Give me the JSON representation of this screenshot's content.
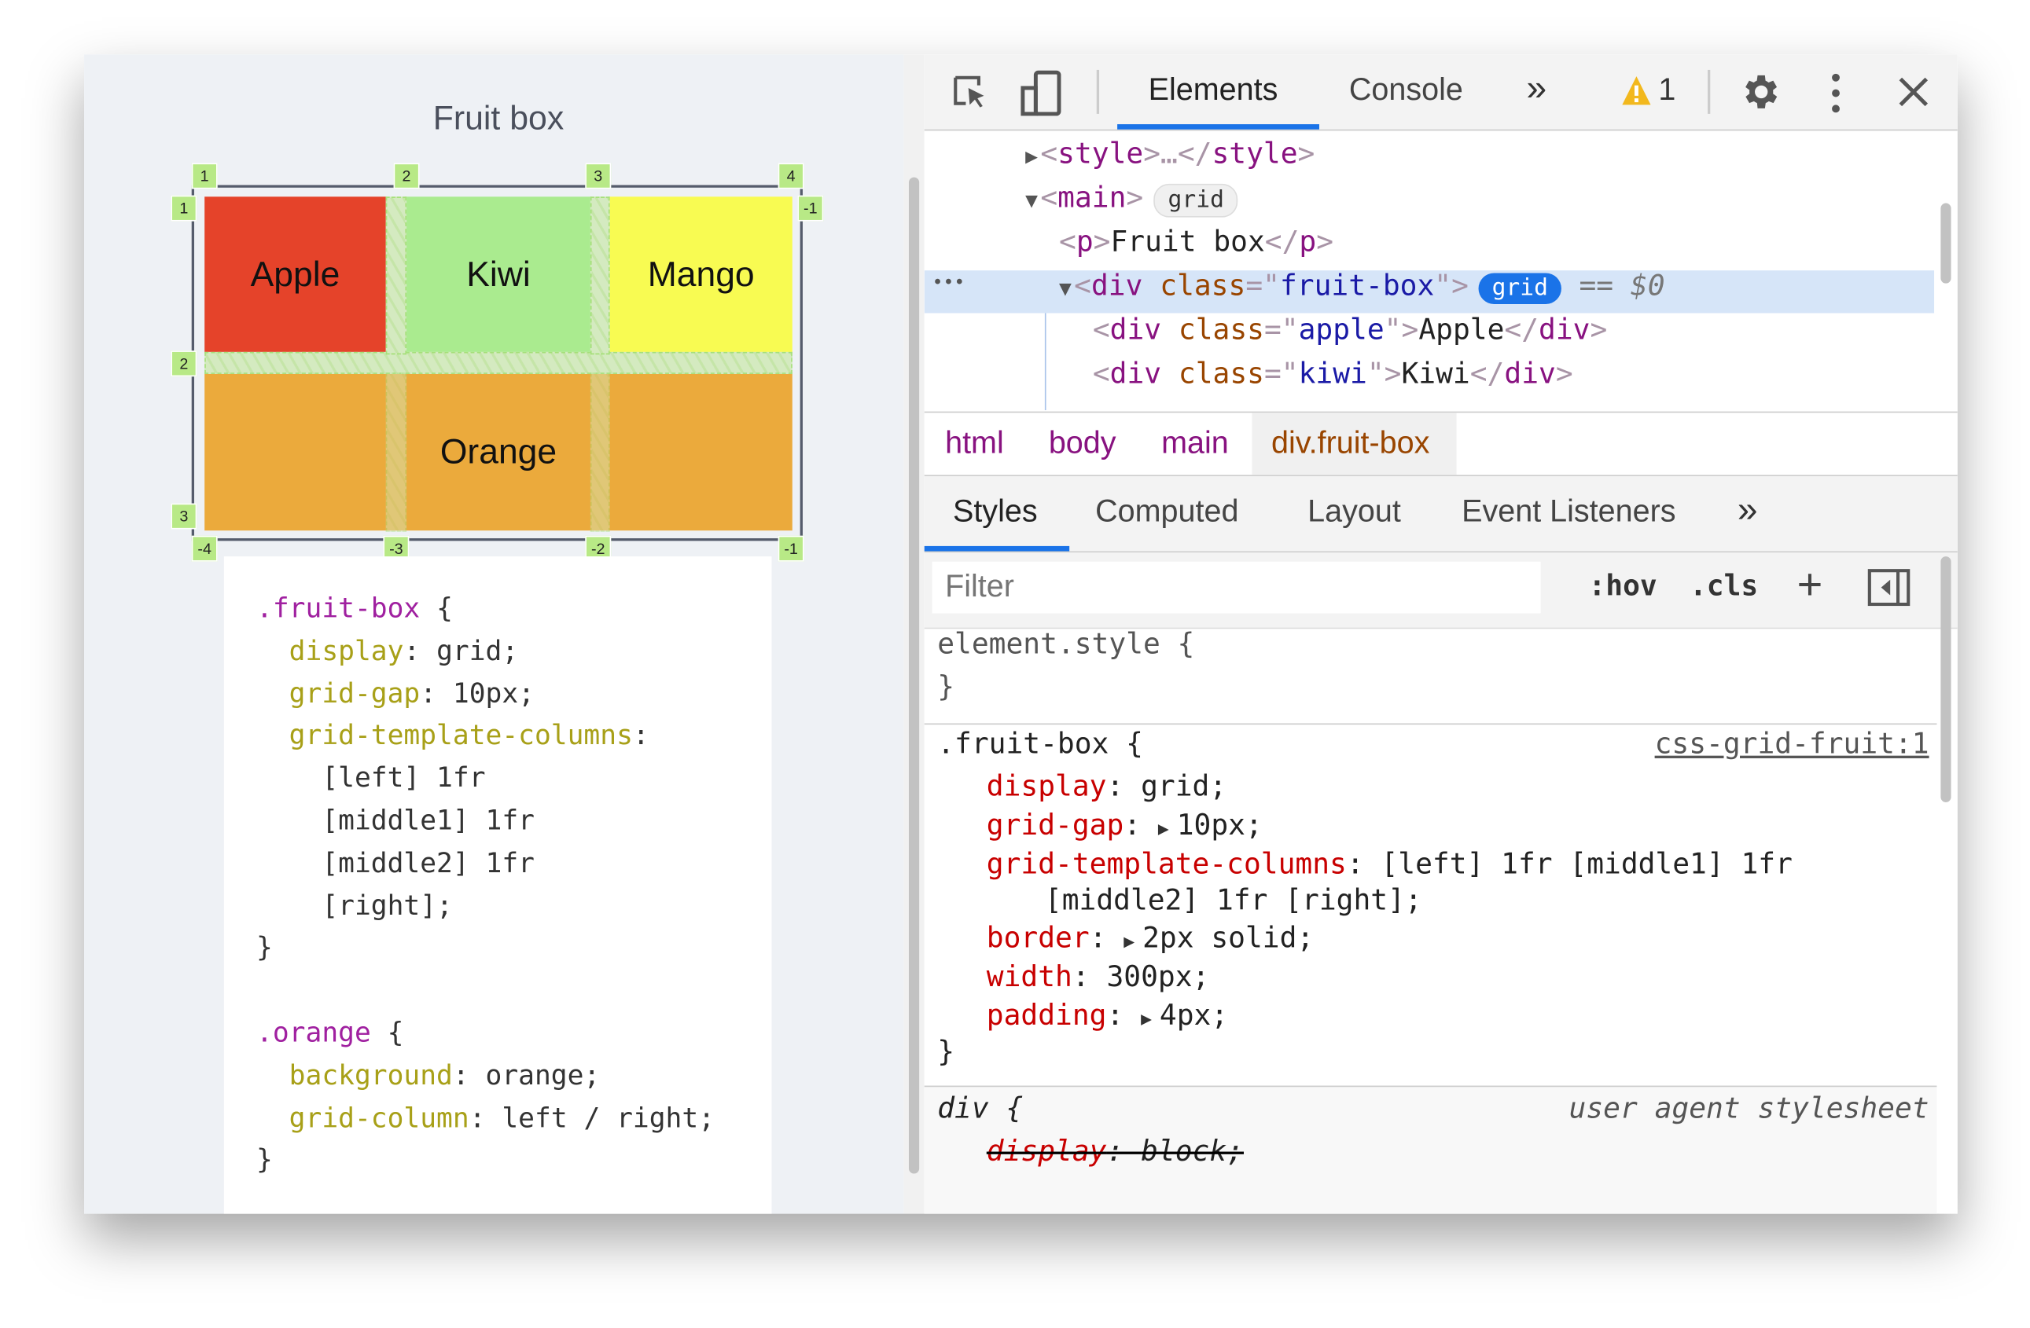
{
  "page": {
    "title": "Fruit box",
    "grid": {
      "cells": [
        {
          "name": "Apple",
          "color": "#e5432a"
        },
        {
          "name": "Kiwi",
          "color": "#aaeb8f"
        },
        {
          "name": "Mango",
          "color": "#f8fb52"
        },
        {
          "name": "Orange",
          "color": "#ebaa3c"
        }
      ],
      "col_labels_top": [
        "1",
        "2",
        "3",
        "4"
      ],
      "col_labels_bottom": [
        "-4",
        "-3",
        "-2",
        "-1"
      ],
      "row_labels_left": [
        "1",
        "2",
        "3"
      ],
      "row_labels_right": [
        "-1"
      ],
      "overlay_color": "#b8e986"
    },
    "code": [
      [
        {
          "t": ".fruit-box",
          "c": "sel"
        },
        {
          "t": " {",
          "c": "val"
        }
      ],
      [
        {
          "t": "  display",
          "c": "prop"
        },
        {
          "t": ": grid;",
          "c": "val"
        }
      ],
      [
        {
          "t": "  grid-gap",
          "c": "prop"
        },
        {
          "t": ": 10px;",
          "c": "val"
        }
      ],
      [
        {
          "t": "  grid-template-columns",
          "c": "prop"
        },
        {
          "t": ":",
          "c": "val"
        }
      ],
      [
        {
          "t": "    [left] 1fr",
          "c": "val"
        }
      ],
      [
        {
          "t": "    [middle1] 1fr",
          "c": "val"
        }
      ],
      [
        {
          "t": "    [middle2] 1fr",
          "c": "val"
        }
      ],
      [
        {
          "t": "    [right];",
          "c": "val"
        }
      ],
      [
        {
          "t": "}",
          "c": "val"
        }
      ],
      [],
      [
        {
          "t": ".orange",
          "c": "sel"
        },
        {
          "t": " {",
          "c": "val"
        }
      ],
      [
        {
          "t": "  background",
          "c": "prop"
        },
        {
          "t": ": orange;",
          "c": "val"
        }
      ],
      [
        {
          "t": "  grid-column",
          "c": "prop"
        },
        {
          "t": ": left / right;",
          "c": "val"
        }
      ],
      [
        {
          "t": "}",
          "c": "val"
        }
      ]
    ]
  },
  "devtools": {
    "tabs": [
      "Elements",
      "Console"
    ],
    "more": "»",
    "warnings": "1",
    "icons": [
      "inspect-icon",
      "device-toolbar-icon",
      "warning-icon",
      "gear-icon",
      "kebab-menu-icon",
      "close-icon"
    ],
    "tree": [
      [
        {
          "t": "<",
          "c": "br"
        },
        {
          "t": "style",
          "c": "tag"
        },
        {
          "t": ">…</",
          "c": "br"
        },
        {
          "t": "style",
          "c": "tag"
        },
        {
          "t": ">",
          "c": "br"
        }
      ],
      [
        {
          "t": "<",
          "c": "br"
        },
        {
          "t": "main",
          "c": "tag"
        },
        {
          "t": ">",
          "c": "br"
        }
      ],
      [
        {
          "t": "<",
          "c": "br"
        },
        {
          "t": "p",
          "c": "tag"
        },
        {
          "t": ">",
          "c": "br"
        },
        {
          "t": "Fruit box",
          "c": "txt"
        },
        {
          "t": "</",
          "c": "br"
        },
        {
          "t": "p",
          "c": "tag"
        },
        {
          "t": ">",
          "c": "br"
        }
      ],
      [
        {
          "t": "<",
          "c": "br"
        },
        {
          "t": "div",
          "c": "tag"
        },
        {
          "t": " class",
          "c": "attr"
        },
        {
          "t": "=\"",
          "c": "br"
        },
        {
          "t": "fruit-box",
          "c": "av"
        },
        {
          "t": "\">",
          "c": "br"
        }
      ],
      [
        {
          "t": "<",
          "c": "br"
        },
        {
          "t": "div",
          "c": "tag"
        },
        {
          "t": " class",
          "c": "attr"
        },
        {
          "t": "=\"",
          "c": "br"
        },
        {
          "t": "apple",
          "c": "av"
        },
        {
          "t": "\">",
          "c": "br"
        },
        {
          "t": "Apple",
          "c": "txt"
        },
        {
          "t": "</",
          "c": "br"
        },
        {
          "t": "div",
          "c": "tag"
        },
        {
          "t": ">",
          "c": "br"
        }
      ],
      [
        {
          "t": "<",
          "c": "br"
        },
        {
          "t": "div",
          "c": "tag"
        },
        {
          "t": " class",
          "c": "attr"
        },
        {
          "t": "=\"",
          "c": "br"
        },
        {
          "t": "kiwi",
          "c": "av"
        },
        {
          "t": "\">",
          "c": "br"
        },
        {
          "t": "Kiwi",
          "c": "txt"
        },
        {
          "t": "</",
          "c": "br"
        },
        {
          "t": "div",
          "c": "tag"
        },
        {
          "t": ">",
          "c": "br"
        }
      ]
    ],
    "main_badge": "grid",
    "selected_badge": "grid",
    "selected_suffix": "== $0",
    "ellipsis": "•••",
    "breadcrumbs": [
      "html",
      "body",
      "main",
      "div.fruit-box"
    ],
    "subtabs": [
      "Styles",
      "Computed",
      "Layout",
      "Event Listeners"
    ],
    "filter_placeholder": "Filter",
    "hov": ":hov",
    "cls": ".cls",
    "plus": "+",
    "styles": {
      "element_style": "element.style {",
      "close": "}",
      "rule_selector": ".fruit-box {",
      "rule_source": "css-grid-fruit:1",
      "props": [
        {
          "p": "display",
          "v": "grid;",
          "expand": false
        },
        {
          "p": "grid-gap",
          "v": "10px;",
          "expand": true
        },
        {
          "p": "grid-template-columns",
          "v": "[left] 1fr [middle1] 1fr",
          "expand": false,
          "cont": "[middle2] 1fr [right];"
        },
        {
          "p": "border",
          "v": "2px solid;",
          "expand": true
        },
        {
          "p": "width",
          "v": "300px;",
          "expand": false
        },
        {
          "p": "padding",
          "v": "4px;",
          "expand": true
        }
      ],
      "ua_selector": "div {",
      "ua_source": "user agent stylesheet",
      "ua_prop": "display",
      "ua_val": "block;"
    },
    "accent": "#1a73e8"
  }
}
